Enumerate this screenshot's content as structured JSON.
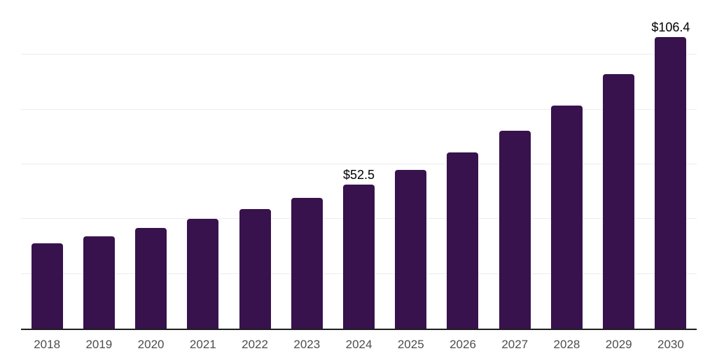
{
  "chart_data": {
    "type": "bar",
    "title": "",
    "xlabel": "",
    "ylabel": "",
    "categories": [
      "2018",
      "2019",
      "2020",
      "2021",
      "2022",
      "2023",
      "2024",
      "2025",
      "2026",
      "2027",
      "2028",
      "2029",
      "2030"
    ],
    "values": [
      31.2,
      33.8,
      36.8,
      40.0,
      43.6,
      47.7,
      52.5,
      58.0,
      64.4,
      72.3,
      81.4,
      92.9,
      106.4
    ],
    "value_labels": [
      {
        "category": "2024",
        "text": "$52.5"
      },
      {
        "category": "2030",
        "text": "$106.4"
      }
    ],
    "ylim": [
      0,
      120
    ],
    "grid_step": 20,
    "grid": "horizontal",
    "legend": "none",
    "y_tick_labels_visible": false,
    "colors": {
      "bar": "#37124D",
      "axis": "#1F1F1F",
      "gridline": "#EDEDED",
      "x_tick_label": "#4D4D4D",
      "value_label": "#000000",
      "background": "#FFFFFF"
    }
  }
}
